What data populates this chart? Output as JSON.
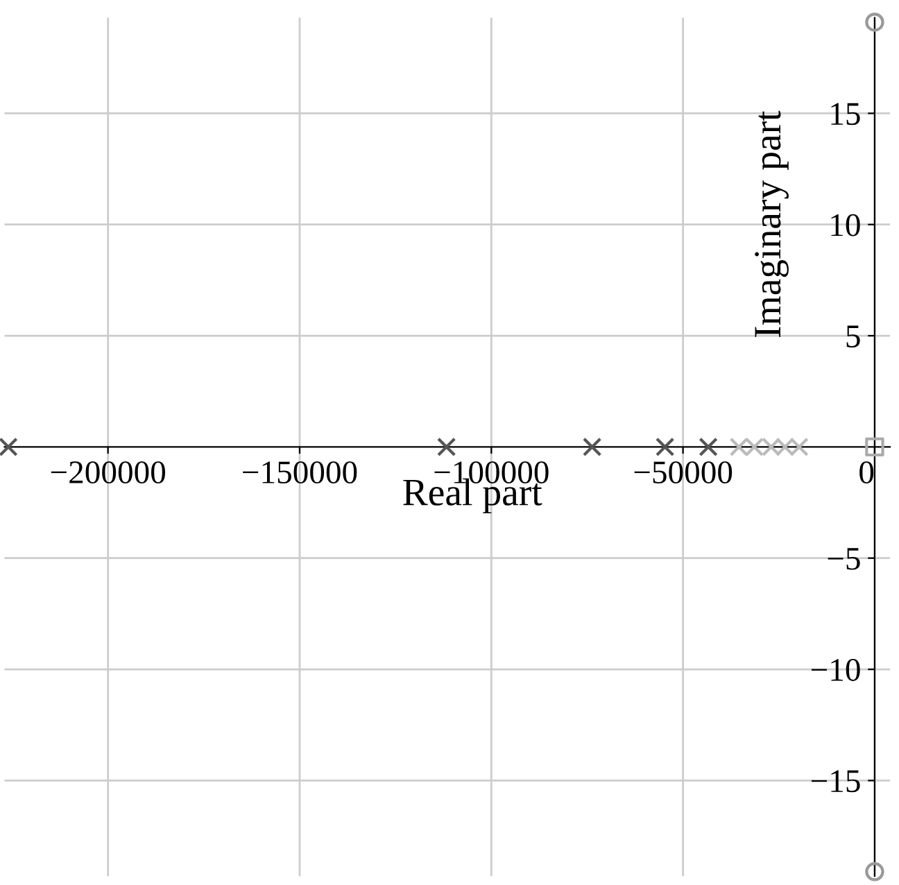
{
  "chart_data": {
    "type": "scatter",
    "xlabel": "Real part",
    "ylabel": "Imaginary part",
    "xlim": [
      -227000,
      4000
    ],
    "ylim": [
      -19.3,
      19.3
    ],
    "xticks": [
      {
        "value": -200000,
        "label": "−200000"
      },
      {
        "value": -150000,
        "label": "−150000"
      },
      {
        "value": -100000,
        "label": "−100000"
      },
      {
        "value": -50000,
        "label": "−50000"
      },
      0
    ],
    "yticks": [
      {
        "value": -15,
        "label": "−15"
      },
      {
        "value": -10,
        "label": "−10"
      },
      {
        "value": -5,
        "label": "−5"
      },
      5,
      10,
      15
    ],
    "grid": true,
    "legend": false,
    "series": [
      {
        "color": "#555555",
        "marker": "cross",
        "x": [
          -226000,
          -111700,
          -73700,
          -54700,
          -43400
        ],
        "values": [
          0,
          0,
          0,
          0,
          0
        ]
      },
      {
        "color": "#bbbbbb",
        "marker": "cross",
        "x": [
          -35400,
          -31400,
          -27000,
          -23400,
          -19700
        ],
        "values": [
          0,
          0,
          0,
          0,
          0
        ]
      },
      {
        "color": "#999999",
        "marker": "circle",
        "x": [
          0,
          0
        ],
        "values": [
          19.1,
          -19.1
        ]
      },
      {
        "color": "#aaaaaa",
        "marker": "square",
        "x": [
          0
        ],
        "values": [
          0
        ]
      }
    ]
  }
}
